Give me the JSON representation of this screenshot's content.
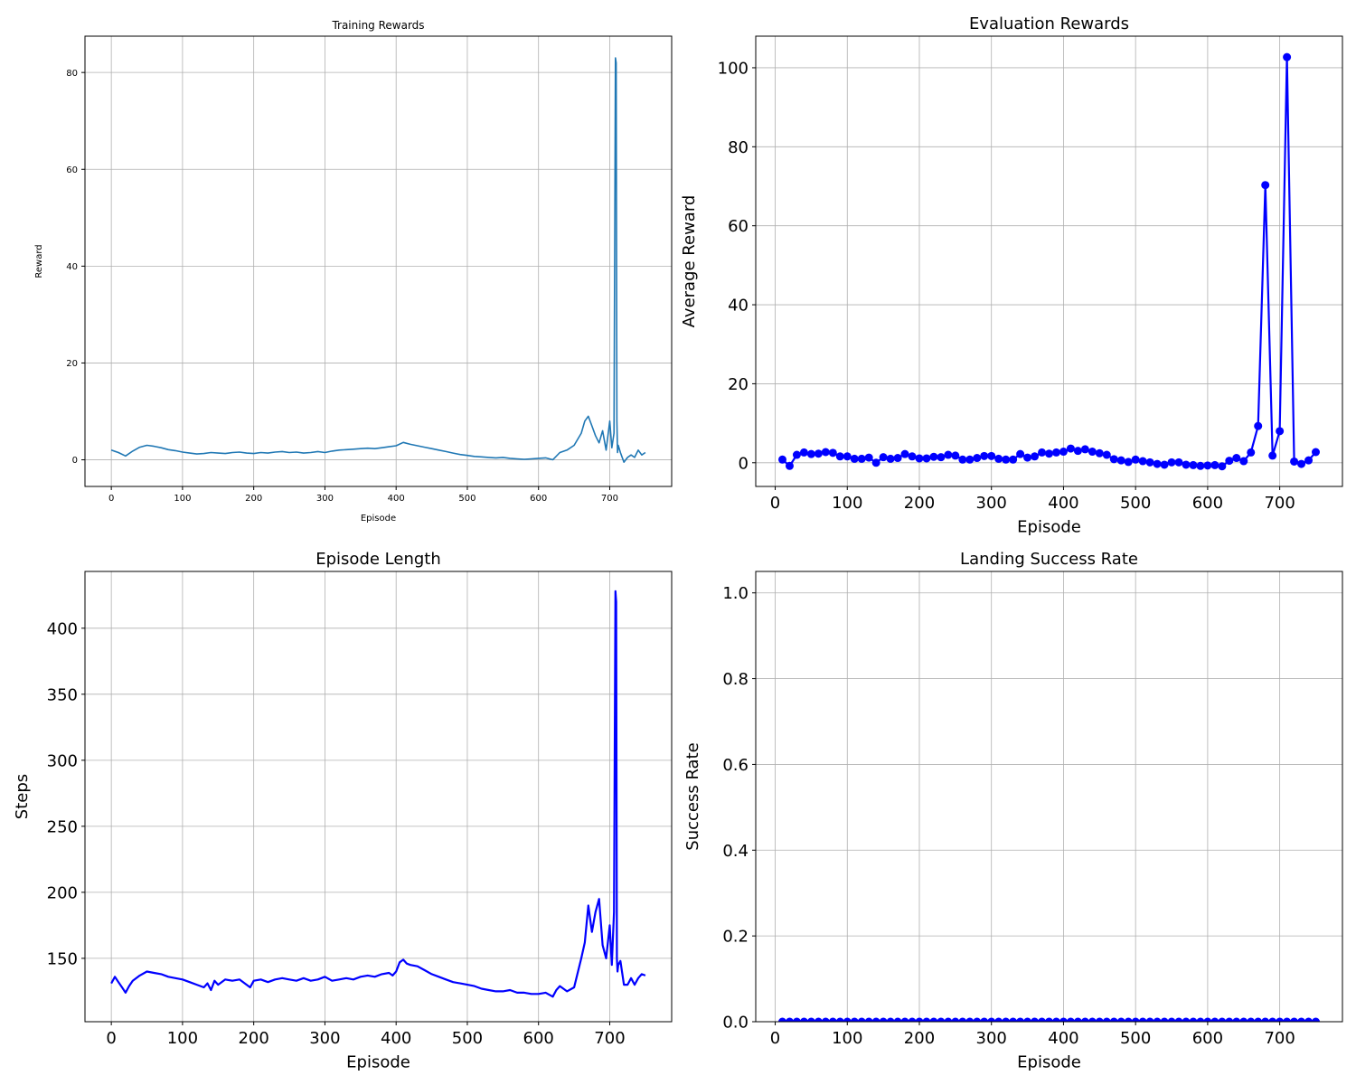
{
  "chart_data": [
    {
      "type": "line",
      "title": "Training Rewards",
      "xlabel": "Episode",
      "ylabel": "Reward",
      "xlim": [
        -37,
        787
      ],
      "ylim": [
        -5.5,
        87.5
      ],
      "xticks": [
        0,
        100,
        200,
        300,
        400,
        500,
        600,
        700
      ],
      "yticks": [
        0,
        20,
        40,
        60,
        80
      ],
      "grid": true,
      "line_color": "#1f77b4",
      "series": [
        {
          "x": [
            0,
            10,
            20,
            30,
            40,
            50,
            60,
            70,
            80,
            90,
            100,
            110,
            120,
            130,
            140,
            150,
            160,
            170,
            180,
            190,
            200,
            210,
            220,
            230,
            240,
            250,
            260,
            270,
            280,
            290,
            300,
            310,
            320,
            330,
            340,
            350,
            360,
            370,
            380,
            390,
            400,
            410,
            420,
            430,
            440,
            450,
            460,
            470,
            480,
            490,
            500,
            510,
            520,
            530,
            540,
            550,
            560,
            570,
            580,
            590,
            600,
            610,
            620,
            630,
            640,
            650,
            660,
            665,
            670,
            675,
            680,
            685,
            690,
            695,
            700,
            703,
            706,
            708,
            709,
            710,
            711,
            712,
            715,
            720,
            725,
            730,
            735,
            740,
            745,
            750
          ],
          "y": [
            2.0,
            1.5,
            0.8,
            1.8,
            2.6,
            3.0,
            2.8,
            2.5,
            2.1,
            1.9,
            1.6,
            1.4,
            1.2,
            1.3,
            1.5,
            1.4,
            1.3,
            1.5,
            1.6,
            1.4,
            1.3,
            1.5,
            1.4,
            1.6,
            1.7,
            1.5,
            1.6,
            1.4,
            1.5,
            1.7,
            1.5,
            1.8,
            2.0,
            2.1,
            2.2,
            2.3,
            2.4,
            2.3,
            2.5,
            2.7,
            2.9,
            3.6,
            3.2,
            2.9,
            2.6,
            2.3,
            2.0,
            1.7,
            1.4,
            1.1,
            0.9,
            0.7,
            0.6,
            0.5,
            0.4,
            0.5,
            0.3,
            0.2,
            0.1,
            0.2,
            0.3,
            0.4,
            0.0,
            1.5,
            2.0,
            3.0,
            5.5,
            8.0,
            9.0,
            7.0,
            5.0,
            3.5,
            6.0,
            2.0,
            8.0,
            2.5,
            5.5,
            83.0,
            82.0,
            8.0,
            1.5,
            3.0,
            1.5,
            -0.5,
            0.5,
            1.0,
            0.5,
            2.0,
            1.0,
            1.5
          ]
        }
      ]
    },
    {
      "type": "line",
      "title": "Evaluation Rewards",
      "xlabel": "Episode",
      "ylabel": "Average Reward",
      "xlim": [
        -27,
        787
      ],
      "ylim": [
        -6,
        108
      ],
      "xticks": [
        0,
        100,
        200,
        300,
        400,
        500,
        600,
        700
      ],
      "yticks": [
        0,
        20,
        40,
        60,
        80,
        100
      ],
      "grid": true,
      "line_color": "#0000ff",
      "markers": true,
      "series": [
        {
          "x": [
            10,
            20,
            30,
            40,
            50,
            60,
            70,
            80,
            90,
            100,
            110,
            120,
            130,
            140,
            150,
            160,
            170,
            180,
            190,
            200,
            210,
            220,
            230,
            240,
            250,
            260,
            270,
            280,
            290,
            300,
            310,
            320,
            330,
            340,
            350,
            360,
            370,
            380,
            390,
            400,
            410,
            420,
            430,
            440,
            450,
            460,
            470,
            480,
            490,
            500,
            510,
            520,
            530,
            540,
            550,
            560,
            570,
            580,
            590,
            600,
            610,
            620,
            630,
            640,
            650,
            660,
            670,
            680,
            690,
            700,
            710,
            720,
            730,
            740,
            750
          ],
          "y": [
            0.8,
            -0.8,
            2.0,
            2.6,
            2.2,
            2.3,
            2.7,
            2.5,
            1.6,
            1.6,
            1.0,
            1.0,
            1.3,
            0.0,
            1.4,
            1.0,
            1.2,
            2.2,
            1.6,
            1.1,
            1.1,
            1.5,
            1.4,
            2.0,
            1.8,
            0.8,
            0.8,
            1.2,
            1.7,
            1.7,
            1.0,
            0.8,
            0.8,
            2.2,
            1.3,
            1.6,
            2.6,
            2.3,
            2.6,
            2.8,
            3.6,
            3.0,
            3.4,
            2.8,
            2.4,
            2.0,
            0.9,
            0.6,
            0.2,
            0.8,
            0.4,
            0.1,
            -0.3,
            -0.5,
            0.1,
            0.1,
            -0.5,
            -0.6,
            -0.8,
            -0.7,
            -0.6,
            -0.9,
            0.5,
            1.2,
            0.4,
            2.6,
            9.3,
            70.3,
            1.8,
            8.0,
            102.7,
            0.3,
            -0.3,
            0.6,
            2.7
          ]
        }
      ]
    },
    {
      "type": "line",
      "title": "Episode Length",
      "xlabel": "Episode",
      "ylabel": "Steps",
      "xlim": [
        -37,
        787
      ],
      "ylim": [
        102,
        443
      ],
      "xticks": [
        0,
        100,
        200,
        300,
        400,
        500,
        600,
        700
      ],
      "yticks": [
        150,
        200,
        250,
        300,
        350,
        400
      ],
      "grid": true,
      "line_color": "#0000ff",
      "series": [
        {
          "x": [
            0,
            5,
            10,
            15,
            20,
            25,
            30,
            40,
            50,
            60,
            70,
            80,
            90,
            100,
            110,
            120,
            130,
            135,
            140,
            145,
            150,
            160,
            170,
            180,
            190,
            195,
            200,
            210,
            220,
            230,
            240,
            250,
            260,
            270,
            280,
            290,
            300,
            310,
            320,
            330,
            340,
            350,
            360,
            370,
            380,
            390,
            395,
            400,
            405,
            410,
            415,
            420,
            430,
            440,
            450,
            460,
            470,
            480,
            490,
            500,
            510,
            520,
            530,
            540,
            550,
            560,
            570,
            580,
            590,
            600,
            610,
            620,
            625,
            630,
            640,
            650,
            660,
            665,
            670,
            675,
            680,
            685,
            690,
            695,
            700,
            703,
            706,
            708,
            709,
            710,
            711,
            712,
            715,
            720,
            725,
            730,
            735,
            740,
            745,
            750
          ],
          "y": [
            131,
            136,
            132,
            128,
            124,
            129,
            133,
            137,
            140,
            139,
            138,
            136,
            135,
            134,
            132,
            130,
            128,
            131,
            126,
            133,
            130,
            134,
            133,
            134,
            130,
            128,
            133,
            134,
            132,
            134,
            135,
            134,
            133,
            135,
            133,
            134,
            136,
            133,
            134,
            135,
            134,
            136,
            137,
            136,
            138,
            139,
            137,
            140,
            147,
            149,
            146,
            145,
            144,
            141,
            138,
            136,
            134,
            132,
            131,
            130,
            129,
            127,
            126,
            125,
            125,
            126,
            124,
            124,
            123,
            123,
            124,
            121,
            126,
            129,
            125,
            128,
            150,
            162,
            190,
            170,
            185,
            195,
            160,
            150,
            175,
            145,
            185,
            428,
            420,
            150,
            140,
            145,
            148,
            130,
            130,
            135,
            130,
            135,
            138,
            137
          ]
        }
      ]
    },
    {
      "type": "scatter",
      "title": "Landing Success Rate",
      "xlabel": "Episode",
      "ylabel": "Success Rate",
      "xlim": [
        -27,
        787
      ],
      "ylim": [
        0,
        1.05
      ],
      "xticks": [
        0,
        100,
        200,
        300,
        400,
        500,
        600,
        700
      ],
      "yticks": [
        0.0,
        0.2,
        0.4,
        0.6,
        0.8,
        1.0
      ],
      "grid": true,
      "line_color": "#0000ff",
      "markers": true,
      "series": [
        {
          "x": [
            10,
            20,
            30,
            40,
            50,
            60,
            70,
            80,
            90,
            100,
            110,
            120,
            130,
            140,
            150,
            160,
            170,
            180,
            190,
            200,
            210,
            220,
            230,
            240,
            250,
            260,
            270,
            280,
            290,
            300,
            310,
            320,
            330,
            340,
            350,
            360,
            370,
            380,
            390,
            400,
            410,
            420,
            430,
            440,
            450,
            460,
            470,
            480,
            490,
            500,
            510,
            520,
            530,
            540,
            550,
            560,
            570,
            580,
            590,
            600,
            610,
            620,
            630,
            640,
            650,
            660,
            670,
            680,
            690,
            700,
            710,
            720,
            730,
            740,
            750
          ],
          "y": [
            0,
            0,
            0,
            0,
            0,
            0,
            0,
            0,
            0,
            0,
            0,
            0,
            0,
            0,
            0,
            0,
            0,
            0,
            0,
            0,
            0,
            0,
            0,
            0,
            0,
            0,
            0,
            0,
            0,
            0,
            0,
            0,
            0,
            0,
            0,
            0,
            0,
            0,
            0,
            0,
            0,
            0,
            0,
            0,
            0,
            0,
            0,
            0,
            0,
            0,
            0,
            0,
            0,
            0,
            0,
            0,
            0,
            0,
            0,
            0,
            0,
            0,
            0,
            0,
            0,
            0,
            0,
            0,
            0,
            0,
            0,
            0,
            0,
            0,
            0
          ]
        }
      ]
    }
  ]
}
